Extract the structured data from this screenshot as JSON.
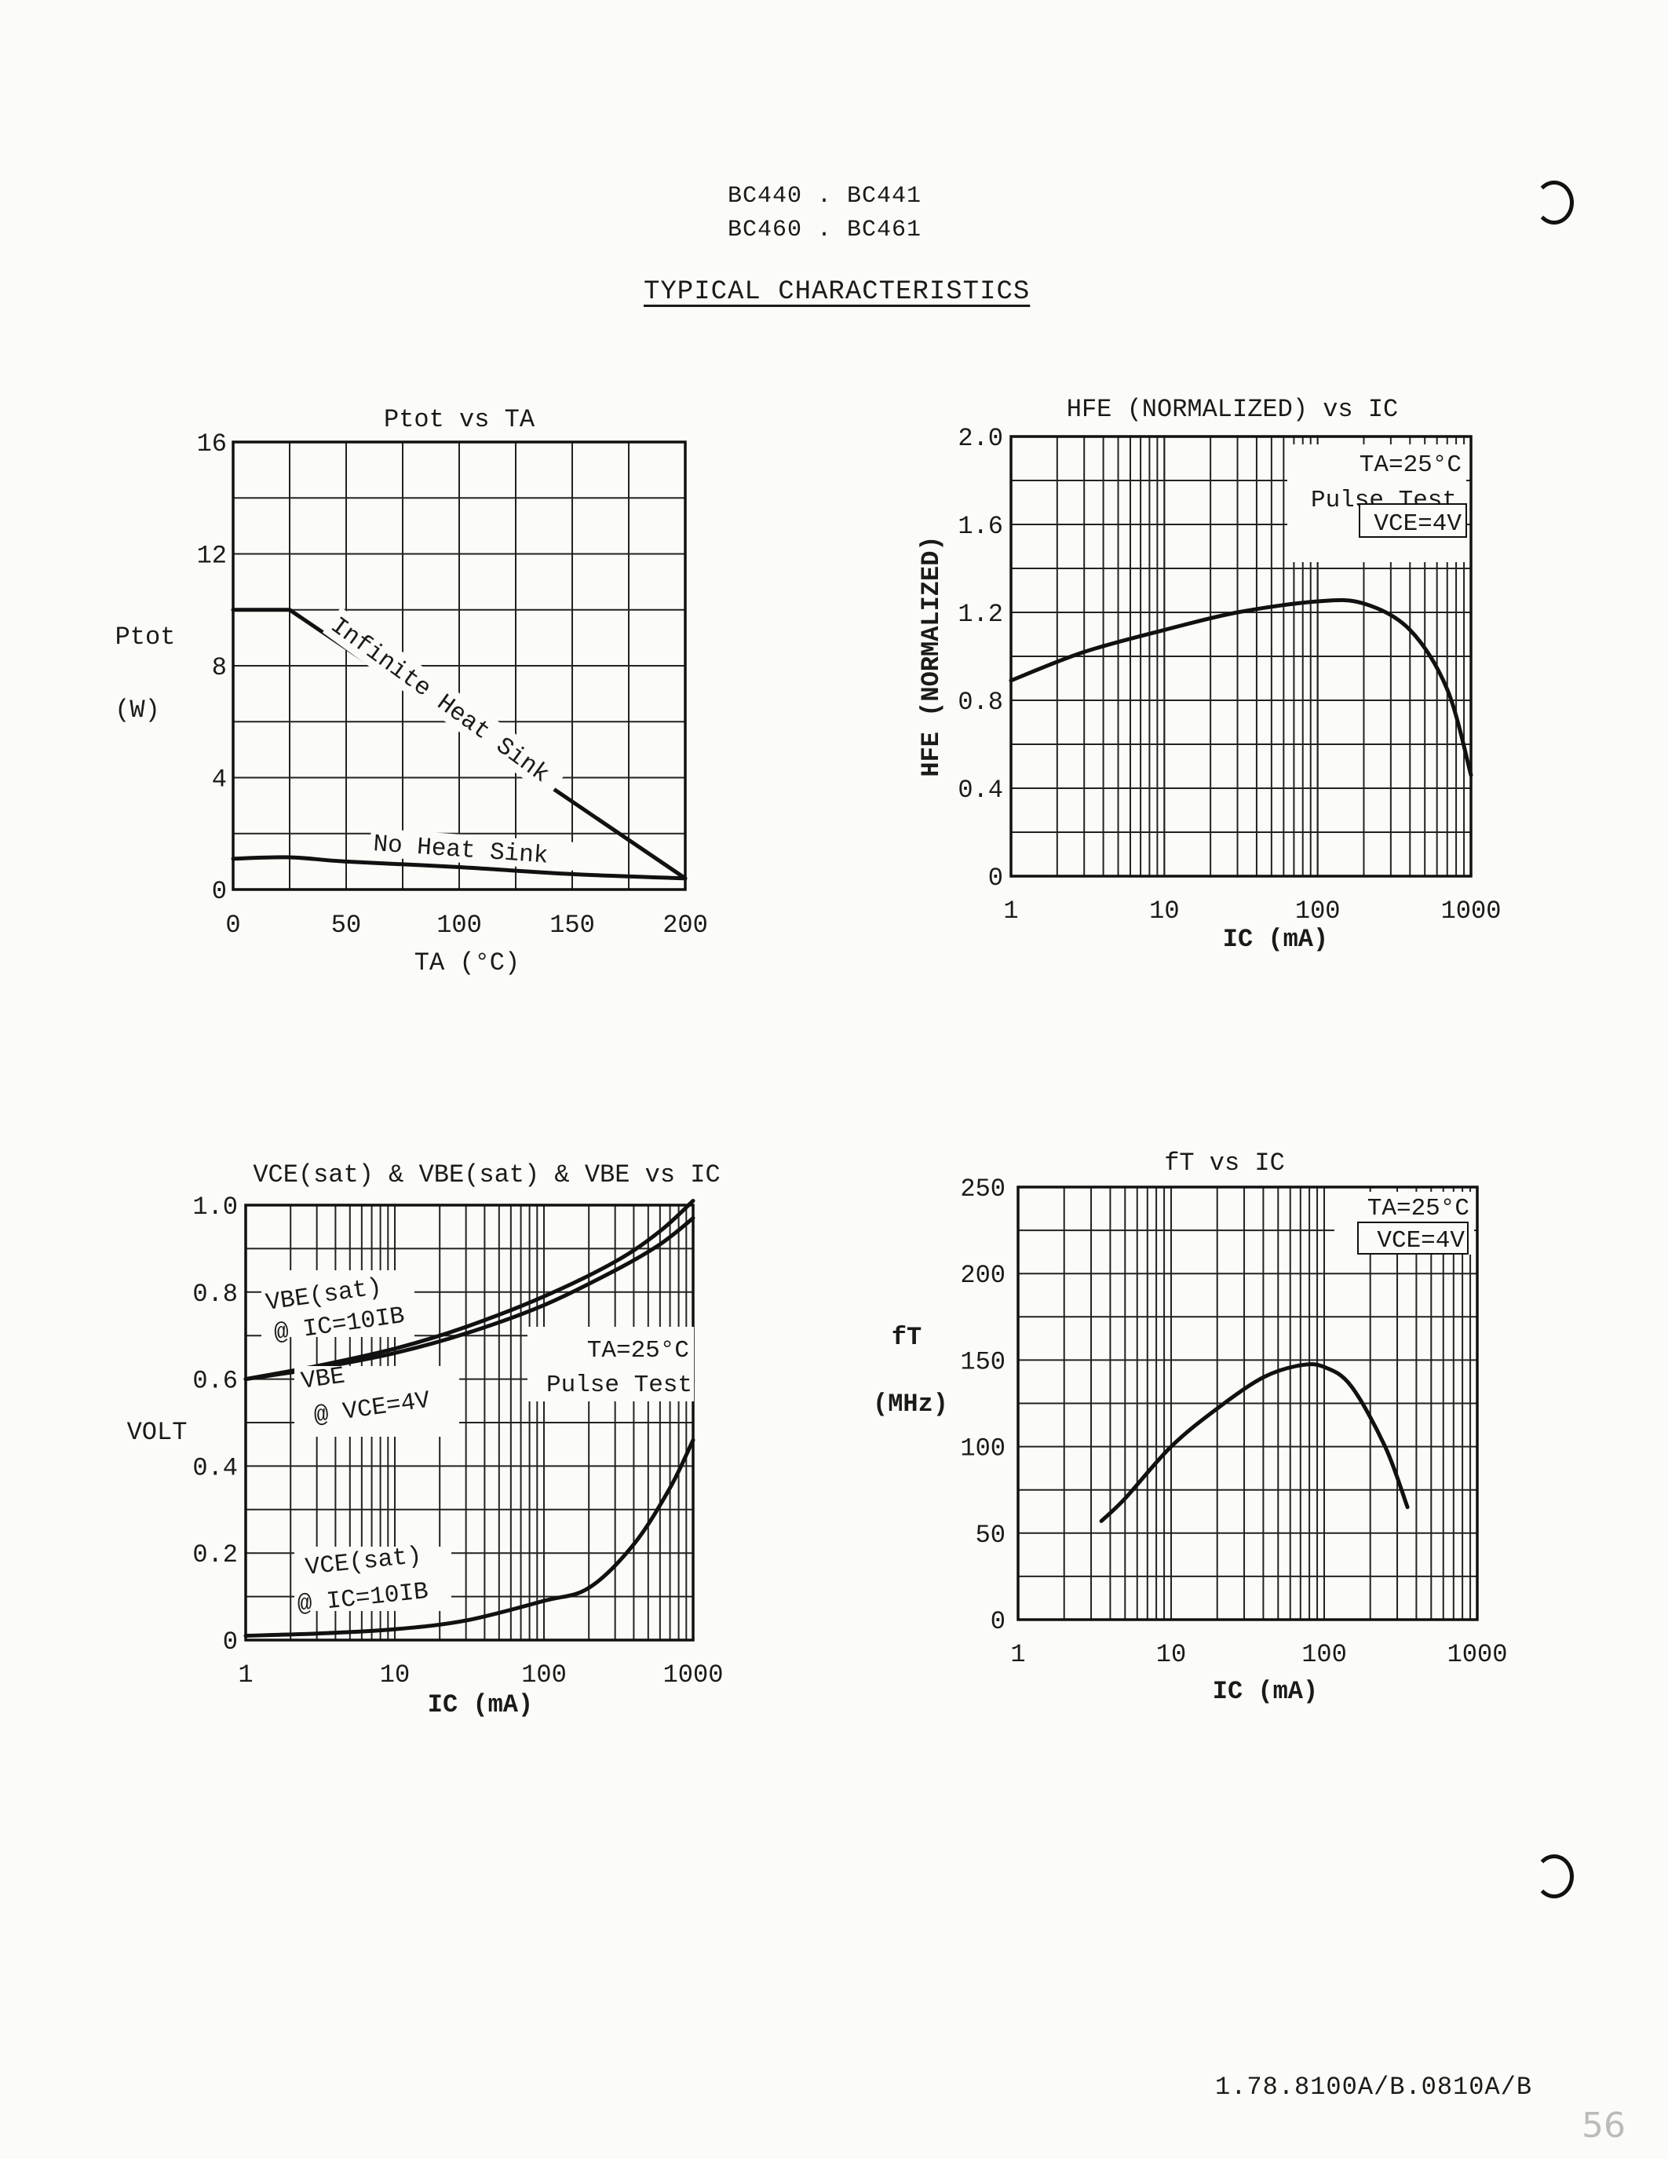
{
  "header": {
    "line1": "BC440 . BC441",
    "line2": "BC460 . BC461",
    "title": "TYPICAL CHARACTERISTICS"
  },
  "footer": "1.78.8100A/B.0810A/B",
  "page_number": "56",
  "chart_data": [
    {
      "id": "ptot",
      "type": "line",
      "title": "Ptot vs TA",
      "xlabel": "TA (°C)",
      "ylabel": "Ptot",
      "ylabel_unit": "(W)",
      "xscale": "linear",
      "xlim": [
        0,
        200
      ],
      "ylim": [
        0,
        16
      ],
      "xticks": [
        "0",
        "50",
        "100",
        "150",
        "200"
      ],
      "yticks": [
        "0",
        "4",
        "8",
        "12",
        "16"
      ],
      "series": [
        {
          "name": "Infinite Heat Sink",
          "x": [
            0,
            25,
            200
          ],
          "y": [
            10,
            10,
            0.4
          ]
        },
        {
          "name": "No Heat Sink",
          "x": [
            0,
            25,
            50,
            100,
            150,
            200
          ],
          "y": [
            1.1,
            1.15,
            1.0,
            0.8,
            0.55,
            0.4
          ]
        }
      ]
    },
    {
      "id": "hfe",
      "type": "line",
      "title": "HFE (NORMALIZED) vs IC",
      "xlabel": "IC (mA)",
      "ylabel": "HFE (NORMALIZED)",
      "xscale": "log",
      "xlim": [
        1,
        1000
      ],
      "ylim": [
        0,
        2.0
      ],
      "xticks": [
        "1",
        "10",
        "100",
        "1000"
      ],
      "yticks": [
        "0",
        "0.4",
        "0.8",
        "1.2",
        "1.6",
        "2.0"
      ],
      "annotations": [
        "TA=25°C",
        "Pulse Test",
        "VCE=4V"
      ],
      "series": [
        {
          "name": "HFE",
          "x": [
            1,
            3,
            10,
            30,
            100,
            200,
            400,
            700,
            1000
          ],
          "y": [
            0.89,
            1.02,
            1.12,
            1.2,
            1.25,
            1.24,
            1.12,
            0.85,
            0.46
          ]
        }
      ]
    },
    {
      "id": "vsat",
      "type": "line",
      "title": "VCE(sat) & VBE(sat) & VBE vs IC",
      "xlabel": "IC (mA)",
      "ylabel": "VOLT",
      "xscale": "log",
      "xlim": [
        1,
        1000
      ],
      "ylim": [
        0,
        1.0
      ],
      "xticks": [
        "1",
        "10",
        "100",
        "1000"
      ],
      "yticks": [
        "0",
        "0.2",
        "0.4",
        "0.6",
        "0.8",
        "1.0"
      ],
      "annotations": [
        "TA=25°C",
        "Pulse Test"
      ],
      "series": [
        {
          "name": "VBE(sat) @ IC=10IB",
          "x": [
            1,
            3,
            10,
            30,
            100,
            300,
            600,
            1000
          ],
          "y": [
            0.6,
            0.63,
            0.67,
            0.72,
            0.79,
            0.87,
            0.94,
            1.01
          ]
        },
        {
          "name": "VBE @ VCE=4V",
          "x": [
            1,
            3,
            10,
            30,
            100,
            300,
            600,
            1000
          ],
          "y": [
            0.6,
            0.625,
            0.66,
            0.705,
            0.77,
            0.85,
            0.91,
            0.97
          ]
        },
        {
          "name": "VCE(sat) @ IC=10IB",
          "x": [
            1,
            3,
            10,
            30,
            100,
            200,
            400,
            700,
            1000
          ],
          "y": [
            0.01,
            0.015,
            0.025,
            0.045,
            0.09,
            0.12,
            0.22,
            0.35,
            0.46
          ]
        }
      ],
      "series_labels": [
        {
          "l1": "VBE(sat)",
          "l2": "@ IC=10IB"
        },
        {
          "l1": "VBE",
          "l2": "@ VCE=4V"
        },
        {
          "l1": "VCE(sat)",
          "l2": "@ IC=10IB"
        }
      ]
    },
    {
      "id": "ft",
      "type": "line",
      "title": "fT vs IC",
      "xlabel": "IC (mA)",
      "ylabel": "fT",
      "ylabel_unit": "(MHz)",
      "xscale": "log",
      "xlim": [
        1,
        1000
      ],
      "ylim": [
        0,
        250
      ],
      "xticks": [
        "1",
        "10",
        "100",
        "1000"
      ],
      "yticks": [
        "0",
        "50",
        "100",
        "150",
        "200",
        "250"
      ],
      "annotations": [
        "TA=25°C",
        "VCE=4V"
      ],
      "series": [
        {
          "name": "fT",
          "x": [
            3.5,
            5,
            10,
            20,
            40,
            70,
            100,
            150,
            250,
            350
          ],
          "y": [
            57,
            70,
            100,
            122,
            140,
            147,
            146,
            135,
            100,
            65
          ]
        }
      ]
    }
  ]
}
